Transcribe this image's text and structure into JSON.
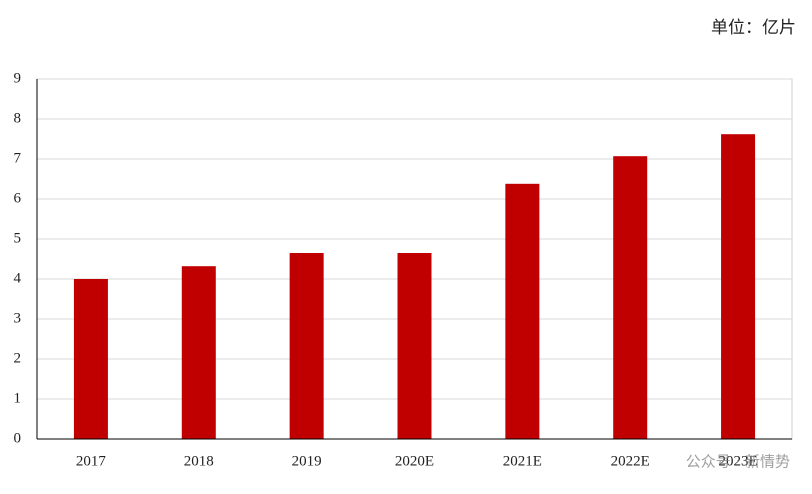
{
  "chart_data": {
    "type": "bar",
    "unit_label": "单位：亿片",
    "watermark": "公众号 · 新情势",
    "categories": [
      "2017",
      "2018",
      "2019",
      "2020E",
      "2021E",
      "2022E",
      "2023E"
    ],
    "values": [
      4.0,
      4.32,
      4.65,
      4.65,
      6.38,
      7.07,
      7.62
    ],
    "color": "#c00000",
    "ylim": [
      0,
      9
    ],
    "yticks": [
      0,
      1,
      2,
      3,
      4,
      5,
      6,
      7,
      8,
      9
    ],
    "grid": true
  }
}
